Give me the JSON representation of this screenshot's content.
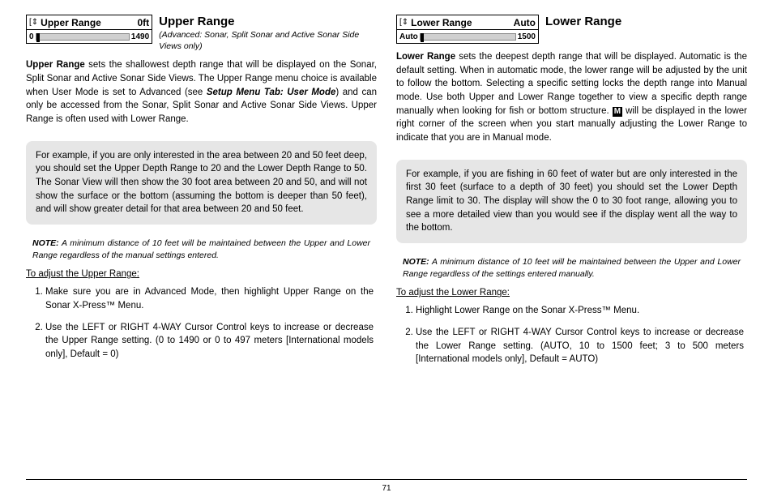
{
  "page_number": "71",
  "left": {
    "widget": {
      "icon": "⇕",
      "label": "Upper Range",
      "value": "0ft",
      "min": "0",
      "max": "1490",
      "thumb_pos_pct": 0
    },
    "title": "Upper Range",
    "subtitle": "(Advanced: Sonar, Split Sonar and Active Sonar Side Views only)",
    "intro_bold": "Upper Range",
    "intro_1": " sets the shallowest depth range that will be displayed on the Sonar, Split Sonar and Active Sonar Side Views. The Upper Range menu choice is available when User Mode is set to Advanced (see ",
    "intro_ref": "Setup Menu Tab: User Mode",
    "intro_2": ") and can only be accessed from the Sonar, Split Sonar and Active Sonar Side Views. Upper Range is often used with Lower Range.",
    "example": "For example, if you are only interested in the area between 20 and 50 feet deep, you should set the Upper Depth Range to 20 and the Lower Depth Range to 50.  The Sonar View will then show the 30 foot area between 20 and 50, and will not show the surface or the bottom (assuming the bottom is deeper than 50 feet), and will show greater detail for that area between 20 and 50 feet.",
    "note_label": "NOTE:",
    "note": " A minimum distance of 10 feet will be maintained between the Upper and Lower Range regardless of the manual settings entered.",
    "adjust_heading": "To adjust the Upper Range:",
    "step1": "Make sure you are in Advanced Mode, then highlight Upper Range on the Sonar X-Press™ Menu.",
    "step2_a": "Use the LEFT or RIGHT 4-WAY Cursor Control keys to increase or decrease the Upper Range setting. (0 to 1490 or 0 to 497 meters ",
    "step2_b": "[International models only]",
    "step2_c": ", Default = 0)"
  },
  "right": {
    "widget": {
      "icon": "⇕",
      "label": "Lower Range",
      "value": "Auto",
      "min": "Auto",
      "max": "1500",
      "thumb_pos_pct": 0
    },
    "title": "Lower Range",
    "intro_bold": "Lower Range",
    "intro_1": " sets the deepest depth range that will be displayed. Automatic is the default setting. When in automatic mode, the lower range will be adjusted by the unit to follow the bottom. Selecting a specific setting locks the depth range into Manual mode. Use both Upper and Lower Range together to view a specific depth range manually when looking for fish or bottom structure. ",
    "m_badge": "M",
    "intro_2": " will be displayed in the lower right corner of the screen when you start manually adjusting the Lower Range to indicate that you are in Manual mode.",
    "example": "For example, if you are fishing in 60 feet of water but are only interested in the first 30 feet (surface to a depth of 30 feet) you should set the Lower Depth Range limit to 30.  The display will show the 0 to 30 foot range, allowing you to see a more detailed view than you would see if the display went all the way to the bottom.",
    "note_label": "NOTE:",
    "note": " A minimum distance of 10 feet will be maintained between the Upper and Lower Range regardless of the settings entered manually.",
    "adjust_heading": "To adjust the Lower Range:",
    "step1": "Highlight Lower Range on the Sonar X-Press™ Menu.",
    "step2_a": "Use the LEFT or RIGHT 4-WAY Cursor Control keys to increase or decrease the Lower Range setting. (AUTO, 10 to 1500 feet; 3 to 500 meters ",
    "step2_b": "[International models only]",
    "step2_c": ", Default = AUTO)"
  }
}
